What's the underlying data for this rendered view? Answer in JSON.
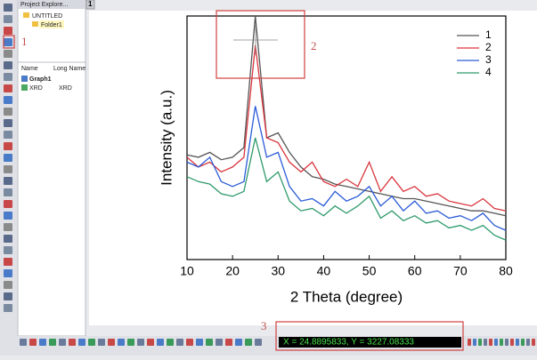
{
  "explorer": {
    "title": "Project Explore...",
    "root": "UNTITLED",
    "folder": "Folder1",
    "columns": [
      "Name",
      "Long Name"
    ],
    "items": [
      [
        "Graph1",
        ""
      ],
      [
        "XRD",
        "XRD"
      ]
    ]
  },
  "tab": "1",
  "status": "X = 24.8895833, Y = 3227.08333",
  "annotations": [
    "1",
    "2",
    "3"
  ],
  "chart_data": {
    "type": "line",
    "xlabel": "2 Theta (degree)",
    "ylabel": "Intensity (a.u.)",
    "x": [
      10,
      12.5,
      15,
      17.5,
      20,
      22.5,
      25,
      27.5,
      30,
      32.5,
      35,
      37.5,
      40,
      42.5,
      45,
      47.5,
      50,
      52.5,
      55,
      57.5,
      60,
      62.5,
      65,
      67.5,
      70,
      72.5,
      75,
      77.5,
      80
    ],
    "xlim": [
      10,
      80
    ],
    "xticks": [
      10,
      20,
      30,
      40,
      50,
      60,
      70,
      80
    ],
    "ylim": [
      0,
      100
    ],
    "series": [
      {
        "name": "1",
        "color": "#555555",
        "values": [
          43,
          42,
          44,
          41,
          42,
          46,
          100,
          50,
          52,
          44,
          38,
          34,
          33,
          31,
          30,
          29,
          28,
          27,
          26,
          25,
          25,
          24,
          23,
          22,
          21,
          20,
          20,
          19,
          18
        ]
      },
      {
        "name": "2",
        "color": "#d9363e",
        "values": [
          42,
          38,
          40,
          36,
          38,
          42,
          88,
          50,
          48,
          40,
          36,
          40,
          32,
          30,
          33,
          30,
          40,
          28,
          34,
          28,
          30,
          26,
          27,
          24,
          23,
          22,
          25,
          21,
          20
        ]
      },
      {
        "name": "3",
        "color": "#2a5bd7",
        "values": [
          40,
          38,
          42,
          32,
          30,
          32,
          63,
          42,
          44,
          30,
          24,
          25,
          22,
          28,
          24,
          26,
          30,
          22,
          26,
          20,
          24,
          19,
          20,
          17,
          18,
          16,
          19,
          14,
          12
        ]
      },
      {
        "name": "4",
        "color": "#2e9a6a",
        "values": [
          34,
          32,
          31,
          27,
          26,
          28,
          50,
          32,
          36,
          24,
          20,
          21,
          18,
          22,
          19,
          22,
          26,
          17,
          20,
          16,
          18,
          15,
          16,
          13,
          14,
          12,
          14,
          10,
          8
        ]
      }
    ]
  }
}
